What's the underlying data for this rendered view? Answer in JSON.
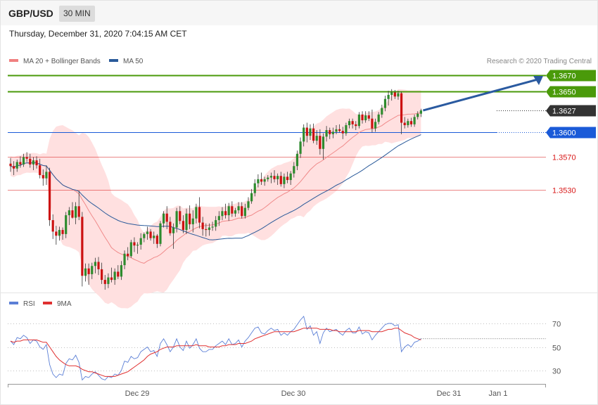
{
  "header": {
    "symbol": "GBP/USD",
    "timeframe": "30 MIN",
    "datetime": "Thursday, December 31, 2020 7:04:15 AM CET"
  },
  "legend_main": [
    {
      "label": "MA 20 + Bollinger Bands",
      "color": "#f08080"
    },
    {
      "label": "MA 50",
      "color": "#2a5a9a"
    }
  ],
  "legend_rsi": [
    {
      "label": "RSI",
      "color": "#5b7fd6"
    },
    {
      "label": "9MA",
      "color": "#e03030"
    }
  ],
  "copyright": "Research © 2020 Trading Central",
  "colors": {
    "up_candle": "#2e8b2e",
    "down_candle": "#cc1111",
    "band_fill": "#ffe0e0",
    "resistance": "#4a9a0a",
    "support_blue": "#1a5ad8",
    "support_red": "#d81818",
    "current": "#333333"
  },
  "chart_data": [
    {
      "type": "candlestick",
      "x_ticks": [
        "Dec 29",
        "Dec 30",
        "Dec 31",
        "Jan 1"
      ],
      "levels": [
        {
          "label": "1.3670",
          "value": 1.367,
          "kind": "resistance"
        },
        {
          "label": "1.3650",
          "value": 1.365,
          "kind": "resistance"
        },
        {
          "label": "1.3627",
          "value": 1.3627,
          "kind": "current"
        },
        {
          "label": "1.3600",
          "value": 1.36,
          "kind": "support_blue"
        },
        {
          "label": "1.3570",
          "value": 1.357,
          "kind": "support_red"
        },
        {
          "label": "1.3530",
          "value": 1.353,
          "kind": "support_red"
        }
      ],
      "ohlc": [
        [
          1.3562,
          1.3569,
          1.3552,
          1.3559
        ],
        [
          1.3559,
          1.3565,
          1.3548,
          1.3556
        ],
        [
          1.3556,
          1.3567,
          1.3552,
          1.3564
        ],
        [
          1.3564,
          1.3571,
          1.3557,
          1.3561
        ],
        [
          1.3561,
          1.3574,
          1.3558,
          1.357
        ],
        [
          1.357,
          1.3576,
          1.3564,
          1.3568
        ],
        [
          1.3568,
          1.3574,
          1.3557,
          1.3561
        ],
        [
          1.3561,
          1.357,
          1.3554,
          1.3566
        ],
        [
          1.3566,
          1.3571,
          1.3556,
          1.356
        ],
        [
          1.356,
          1.3568,
          1.3544,
          1.3548
        ],
        [
          1.3548,
          1.3555,
          1.3535,
          1.3544
        ],
        [
          1.3544,
          1.356,
          1.3536,
          1.3552
        ],
        [
          1.3552,
          1.3557,
          1.3486,
          1.3493
        ],
        [
          1.3493,
          1.35,
          1.347,
          1.3479
        ],
        [
          1.3479,
          1.3486,
          1.3463,
          1.3474
        ],
        [
          1.3474,
          1.3485,
          1.3468,
          1.3481
        ],
        [
          1.3481,
          1.3484,
          1.3469,
          1.3476
        ],
        [
          1.3476,
          1.3503,
          1.3471,
          1.3499
        ],
        [
          1.3499,
          1.3509,
          1.3487,
          1.3505
        ],
        [
          1.3505,
          1.3515,
          1.3495,
          1.3496
        ],
        [
          1.3496,
          1.3515,
          1.3488,
          1.351
        ],
        [
          1.351,
          1.3529,
          1.3493,
          1.3497
        ],
        [
          1.3497,
          1.3503,
          1.3412,
          1.3425
        ],
        [
          1.3425,
          1.344,
          1.3418,
          1.3434
        ],
        [
          1.3434,
          1.344,
          1.3414,
          1.3427
        ],
        [
          1.3427,
          1.3441,
          1.3421,
          1.3437
        ],
        [
          1.3437,
          1.3447,
          1.3428,
          1.3442
        ],
        [
          1.3442,
          1.3448,
          1.3426,
          1.3433
        ],
        [
          1.3433,
          1.3441,
          1.3415,
          1.342
        ],
        [
          1.342,
          1.3426,
          1.3408,
          1.3415
        ],
        [
          1.3415,
          1.3428,
          1.341,
          1.3423
        ],
        [
          1.3423,
          1.3435,
          1.3417,
          1.342
        ],
        [
          1.342,
          1.3434,
          1.3414,
          1.343
        ],
        [
          1.343,
          1.3438,
          1.3421,
          1.3424
        ],
        [
          1.3424,
          1.3443,
          1.342,
          1.3438
        ],
        [
          1.3438,
          1.3456,
          1.3433,
          1.3452
        ],
        [
          1.3452,
          1.346,
          1.3444,
          1.3449
        ],
        [
          1.3449,
          1.3469,
          1.3447,
          1.3466
        ],
        [
          1.3466,
          1.3472,
          1.3454,
          1.3462
        ],
        [
          1.3462,
          1.3466,
          1.3452,
          1.3463
        ],
        [
          1.3463,
          1.3477,
          1.3457,
          1.3471
        ],
        [
          1.3471,
          1.3478,
          1.3466,
          1.3476
        ],
        [
          1.3476,
          1.3485,
          1.3469,
          1.3479
        ],
        [
          1.3479,
          1.3482,
          1.3468,
          1.3471
        ],
        [
          1.3471,
          1.3479,
          1.3464,
          1.3474
        ],
        [
          1.3474,
          1.3476,
          1.3459,
          1.3464
        ],
        [
          1.3464,
          1.3492,
          1.3461,
          1.3489
        ],
        [
          1.3489,
          1.3504,
          1.3484,
          1.3501
        ],
        [
          1.3501,
          1.351,
          1.3482,
          1.3491
        ],
        [
          1.3491,
          1.3497,
          1.3474,
          1.3477
        ],
        [
          1.3477,
          1.3489,
          1.3458,
          1.3484
        ],
        [
          1.3484,
          1.3508,
          1.3478,
          1.3504
        ],
        [
          1.3504,
          1.351,
          1.3488,
          1.3492
        ],
        [
          1.3492,
          1.3499,
          1.3477,
          1.3481
        ],
        [
          1.3481,
          1.3507,
          1.3476,
          1.3501
        ],
        [
          1.3501,
          1.3511,
          1.3482,
          1.3488
        ],
        [
          1.3488,
          1.3505,
          1.3478,
          1.3495
        ],
        [
          1.3495,
          1.3513,
          1.3489,
          1.3509
        ],
        [
          1.3509,
          1.3521,
          1.3483,
          1.349
        ],
        [
          1.349,
          1.3497,
          1.3474,
          1.3482
        ],
        [
          1.3482,
          1.3489,
          1.3473,
          1.3481
        ],
        [
          1.3481,
          1.3489,
          1.3474,
          1.3484
        ],
        [
          1.3484,
          1.3491,
          1.348,
          1.3485
        ],
        [
          1.3485,
          1.3498,
          1.348,
          1.3493
        ],
        [
          1.3493,
          1.3504,
          1.3486,
          1.3498
        ],
        [
          1.3498,
          1.3509,
          1.3493,
          1.3504
        ],
        [
          1.3504,
          1.3513,
          1.3495,
          1.3499
        ],
        [
          1.3499,
          1.3514,
          1.3492,
          1.351
        ],
        [
          1.351,
          1.3516,
          1.3497,
          1.3501
        ],
        [
          1.3501,
          1.3508,
          1.3497,
          1.3505
        ],
        [
          1.3505,
          1.3515,
          1.3501,
          1.351
        ],
        [
          1.351,
          1.3515,
          1.3495,
          1.3498
        ],
        [
          1.3498,
          1.3513,
          1.3495,
          1.3508
        ],
        [
          1.3508,
          1.3521,
          1.3505,
          1.3516
        ],
        [
          1.3516,
          1.3531,
          1.3513,
          1.3526
        ],
        [
          1.3526,
          1.3543,
          1.3522,
          1.3538
        ],
        [
          1.3538,
          1.3549,
          1.3533,
          1.3543
        ],
        [
          1.3543,
          1.3551,
          1.3536,
          1.354
        ],
        [
          1.354,
          1.3546,
          1.3535,
          1.3543
        ],
        [
          1.3543,
          1.3548,
          1.354,
          1.3545
        ],
        [
          1.3545,
          1.3551,
          1.3538,
          1.3547
        ],
        [
          1.3547,
          1.3554,
          1.3539,
          1.3543
        ],
        [
          1.3543,
          1.355,
          1.3536,
          1.3547
        ],
        [
          1.3547,
          1.3552,
          1.3534,
          1.3537
        ],
        [
          1.3537,
          1.355,
          1.3532,
          1.3546
        ],
        [
          1.3546,
          1.3552,
          1.3538,
          1.3542
        ],
        [
          1.3542,
          1.3553,
          1.3536,
          1.355
        ],
        [
          1.355,
          1.3564,
          1.3545,
          1.3559
        ],
        [
          1.3559,
          1.3578,
          1.3554,
          1.3574
        ],
        [
          1.3574,
          1.3594,
          1.3569,
          1.3589
        ],
        [
          1.3589,
          1.361,
          1.3583,
          1.3606
        ],
        [
          1.3606,
          1.3612,
          1.3588,
          1.3596
        ],
        [
          1.3596,
          1.361,
          1.3591,
          1.3605
        ],
        [
          1.3605,
          1.3611,
          1.3587,
          1.359
        ],
        [
          1.359,
          1.3603,
          1.3585,
          1.3596
        ],
        [
          1.3596,
          1.3604,
          1.3573,
          1.358
        ],
        [
          1.358,
          1.3599,
          1.3567,
          1.3595
        ],
        [
          1.3595,
          1.3608,
          1.3589,
          1.3603
        ],
        [
          1.3603,
          1.3606,
          1.3592,
          1.3598
        ],
        [
          1.3598,
          1.3606,
          1.3593,
          1.3601
        ],
        [
          1.3601,
          1.3609,
          1.3598,
          1.3604
        ],
        [
          1.3604,
          1.361,
          1.36,
          1.3602
        ],
        [
          1.3602,
          1.3607,
          1.3592,
          1.3599
        ],
        [
          1.3599,
          1.3612,
          1.3596,
          1.3609
        ],
        [
          1.3609,
          1.3617,
          1.3605,
          1.3614
        ],
        [
          1.3614,
          1.3617,
          1.3605,
          1.361
        ],
        [
          1.361,
          1.3614,
          1.3603,
          1.3608
        ],
        [
          1.3608,
          1.3625,
          1.3605,
          1.3622
        ],
        [
          1.3622,
          1.3626,
          1.3611,
          1.3615
        ],
        [
          1.3615,
          1.3626,
          1.3612,
          1.3621
        ],
        [
          1.3621,
          1.3626,
          1.3614,
          1.3617
        ],
        [
          1.3617,
          1.3628,
          1.36,
          1.3605
        ],
        [
          1.3605,
          1.3617,
          1.3601,
          1.3613
        ],
        [
          1.3613,
          1.3625,
          1.361,
          1.3622
        ],
        [
          1.3622,
          1.3634,
          1.3618,
          1.363
        ],
        [
          1.363,
          1.3645,
          1.3626,
          1.3641
        ],
        [
          1.3641,
          1.3651,
          1.3633,
          1.3646
        ],
        [
          1.3646,
          1.3653,
          1.3639,
          1.3649
        ],
        [
          1.3649,
          1.3652,
          1.3641,
          1.3644
        ],
        [
          1.3644,
          1.3651,
          1.364,
          1.3648
        ],
        [
          1.3648,
          1.365,
          1.3598,
          1.3612
        ],
        [
          1.3612,
          1.3619,
          1.3605,
          1.3609
        ],
        [
          1.3609,
          1.3617,
          1.3606,
          1.3614
        ],
        [
          1.3614,
          1.3618,
          1.3607,
          1.361
        ],
        [
          1.361,
          1.3622,
          1.3607,
          1.3619
        ],
        [
          1.3619,
          1.3626,
          1.3616,
          1.3623
        ],
        [
          1.3623,
          1.3629,
          1.3619,
          1.3627
        ]
      ]
    },
    {
      "type": "line",
      "y_ticks": [
        30,
        50,
        70
      ],
      "x_ticks": [
        "Dec 29",
        "Dec 30",
        "Dec 31",
        "Jan 1"
      ],
      "series": [
        {
          "name": "RSI",
          "values": [
            55,
            52,
            58,
            57,
            60,
            58,
            53,
            56,
            55,
            50,
            48,
            52,
            35,
            27,
            24,
            27,
            26,
            36,
            40,
            39,
            43,
            37,
            22,
            25,
            24,
            27,
            29,
            26,
            23,
            22,
            25,
            24,
            27,
            26,
            30,
            38,
            37,
            42,
            40,
            41,
            46,
            48,
            50,
            46,
            47,
            42,
            53,
            57,
            52,
            46,
            50,
            57,
            50,
            47,
            55,
            49,
            52,
            57,
            49,
            46,
            46,
            48,
            48,
            51,
            53,
            55,
            52,
            57,
            52,
            53,
            56,
            50,
            55,
            58,
            62,
            66,
            67,
            62,
            61,
            64,
            66,
            64,
            65,
            60,
            62,
            60,
            63,
            65,
            69,
            73,
            76,
            65,
            68,
            60,
            63,
            53,
            62,
            66,
            63,
            64,
            65,
            62,
            60,
            64,
            66,
            62,
            62,
            67,
            61,
            63,
            62,
            56,
            60,
            63,
            66,
            69,
            70,
            70,
            68,
            69,
            46,
            50,
            52,
            50,
            54,
            55,
            57
          ]
        },
        {
          "name": "9MA",
          "values": [
            55,
            54,
            55,
            55,
            56,
            56,
            56,
            56,
            56,
            55,
            54,
            54,
            50,
            46,
            42,
            39,
            37,
            35,
            34,
            34,
            34,
            33,
            31,
            30,
            29,
            29,
            28,
            27,
            26,
            25,
            25,
            25,
            25,
            26,
            27,
            28,
            29,
            31,
            33,
            35,
            37,
            39,
            42,
            44,
            45,
            46,
            48,
            49,
            50,
            50,
            50,
            51,
            51,
            51,
            51,
            51,
            51,
            52,
            51,
            51,
            51,
            50,
            50,
            50,
            50,
            51,
            51,
            52,
            52,
            52,
            53,
            53,
            53,
            54,
            55,
            57,
            58,
            59,
            60,
            61,
            62,
            63,
            63,
            63,
            63,
            63,
            63,
            63,
            64,
            65,
            66,
            66,
            66,
            66,
            66,
            65,
            65,
            65,
            65,
            64,
            64,
            63,
            63,
            63,
            63,
            63,
            63,
            64,
            64,
            64,
            64,
            63,
            63,
            63,
            63,
            64,
            65,
            65,
            66,
            66,
            64,
            62,
            61,
            60,
            58,
            57,
            56
          ]
        }
      ]
    }
  ]
}
